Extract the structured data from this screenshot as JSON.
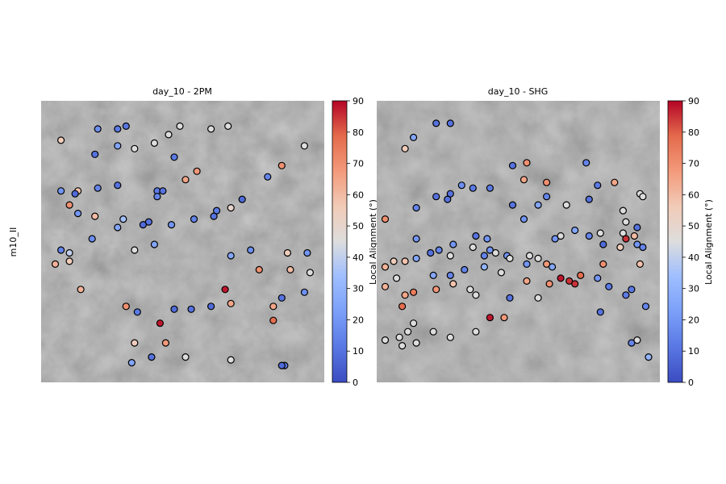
{
  "figure": {
    "row_label": "m10_II"
  },
  "chart_data": [
    {
      "type": "scatter",
      "title": "day_10 - 2PM",
      "colorbar": {
        "label": "Local Alignment (°)",
        "range": [
          0,
          90
        ],
        "ticks": [
          "0",
          "10",
          "20",
          "30",
          "40",
          "50",
          "60",
          "70",
          "80",
          "90"
        ],
        "colormap": "coolwarm"
      },
      "axes_visible": false,
      "points": [
        {
          "x": 0.2,
          "y": 0.9,
          "v": 18
        },
        {
          "x": 0.27,
          "y": 0.9,
          "v": 12
        },
        {
          "x": 0.3,
          "y": 0.91,
          "v": 11
        },
        {
          "x": 0.49,
          "y": 0.91,
          "v": 45
        },
        {
          "x": 0.6,
          "y": 0.9,
          "v": 45
        },
        {
          "x": 0.66,
          "y": 0.91,
          "v": 45
        },
        {
          "x": 0.07,
          "y": 0.86,
          "v": 55
        },
        {
          "x": 0.4,
          "y": 0.85,
          "v": 45
        },
        {
          "x": 0.45,
          "y": 0.88,
          "v": 45
        },
        {
          "x": 0.19,
          "y": 0.81,
          "v": 10
        },
        {
          "x": 0.27,
          "y": 0.84,
          "v": 25
        },
        {
          "x": 0.33,
          "y": 0.83,
          "v": 45
        },
        {
          "x": 0.47,
          "y": 0.8,
          "v": 12
        },
        {
          "x": 0.93,
          "y": 0.84,
          "v": 45
        },
        {
          "x": 0.85,
          "y": 0.77,
          "v": 70
        },
        {
          "x": 0.55,
          "y": 0.75,
          "v": 68
        },
        {
          "x": 0.51,
          "y": 0.72,
          "v": 65
        },
        {
          "x": 0.8,
          "y": 0.73,
          "v": 15
        },
        {
          "x": 0.07,
          "y": 0.68,
          "v": 20
        },
        {
          "x": 0.13,
          "y": 0.68,
          "v": 58
        },
        {
          "x": 0.12,
          "y": 0.67,
          "v": 8
        },
        {
          "x": 0.2,
          "y": 0.69,
          "v": 15
        },
        {
          "x": 0.27,
          "y": 0.7,
          "v": 10
        },
        {
          "x": 0.41,
          "y": 0.68,
          "v": 12
        },
        {
          "x": 0.43,
          "y": 0.68,
          "v": 10
        },
        {
          "x": 0.41,
          "y": 0.66,
          "v": 15
        },
        {
          "x": 0.71,
          "y": 0.65,
          "v": 8
        },
        {
          "x": 0.1,
          "y": 0.63,
          "v": 70
        },
        {
          "x": 0.13,
          "y": 0.6,
          "v": 20
        },
        {
          "x": 0.19,
          "y": 0.59,
          "v": 60
        },
        {
          "x": 0.29,
          "y": 0.58,
          "v": 35
        },
        {
          "x": 0.62,
          "y": 0.61,
          "v": 12
        },
        {
          "x": 0.67,
          "y": 0.62,
          "v": 50
        },
        {
          "x": 0.61,
          "y": 0.59,
          "v": 10
        },
        {
          "x": 0.54,
          "y": 0.58,
          "v": 15
        },
        {
          "x": 0.38,
          "y": 0.57,
          "v": 10
        },
        {
          "x": 0.36,
          "y": 0.56,
          "v": 8
        },
        {
          "x": 0.27,
          "y": 0.55,
          "v": 25
        },
        {
          "x": 0.46,
          "y": 0.56,
          "v": 20
        },
        {
          "x": 0.18,
          "y": 0.51,
          "v": 18
        },
        {
          "x": 0.4,
          "y": 0.49,
          "v": 25
        },
        {
          "x": 0.07,
          "y": 0.47,
          "v": 15
        },
        {
          "x": 0.1,
          "y": 0.46,
          "v": 40
        },
        {
          "x": 0.33,
          "y": 0.47,
          "v": 45
        },
        {
          "x": 0.74,
          "y": 0.47,
          "v": 18
        },
        {
          "x": 0.67,
          "y": 0.45,
          "v": 25
        },
        {
          "x": 0.87,
          "y": 0.46,
          "v": 55
        },
        {
          "x": 0.94,
          "y": 0.46,
          "v": 20
        },
        {
          "x": 0.1,
          "y": 0.43,
          "v": 55
        },
        {
          "x": 0.05,
          "y": 0.42,
          "v": 62
        },
        {
          "x": 0.77,
          "y": 0.4,
          "v": 70
        },
        {
          "x": 0.88,
          "y": 0.4,
          "v": 60
        },
        {
          "x": 0.95,
          "y": 0.39,
          "v": 45
        },
        {
          "x": 0.14,
          "y": 0.33,
          "v": 62
        },
        {
          "x": 0.65,
          "y": 0.33,
          "v": 88
        },
        {
          "x": 0.93,
          "y": 0.32,
          "v": 18
        },
        {
          "x": 0.85,
          "y": 0.3,
          "v": 10
        },
        {
          "x": 0.3,
          "y": 0.27,
          "v": 70
        },
        {
          "x": 0.34,
          "y": 0.25,
          "v": 12
        },
        {
          "x": 0.47,
          "y": 0.26,
          "v": 8
        },
        {
          "x": 0.53,
          "y": 0.26,
          "v": 10
        },
        {
          "x": 0.6,
          "y": 0.27,
          "v": 8
        },
        {
          "x": 0.67,
          "y": 0.28,
          "v": 65
        },
        {
          "x": 0.82,
          "y": 0.27,
          "v": 65
        },
        {
          "x": 0.42,
          "y": 0.21,
          "v": 88
        },
        {
          "x": 0.82,
          "y": 0.22,
          "v": 78
        },
        {
          "x": 0.33,
          "y": 0.14,
          "v": 55
        },
        {
          "x": 0.44,
          "y": 0.14,
          "v": 68
        },
        {
          "x": 0.51,
          "y": 0.09,
          "v": 45
        },
        {
          "x": 0.39,
          "y": 0.09,
          "v": 10
        },
        {
          "x": 0.32,
          "y": 0.07,
          "v": 25
        },
        {
          "x": 0.67,
          "y": 0.08,
          "v": 45
        },
        {
          "x": 0.86,
          "y": 0.06,
          "v": 12
        },
        {
          "x": 0.85,
          "y": 0.06,
          "v": 8
        }
      ]
    },
    {
      "type": "scatter",
      "title": "day_10 - SHG",
      "colorbar": {
        "label": "Local Alignment (°)",
        "range": [
          0,
          90
        ],
        "ticks": [
          "0",
          "10",
          "20",
          "30",
          "40",
          "50",
          "60",
          "70",
          "80",
          "90"
        ],
        "colormap": "coolwarm"
      },
      "axes_visible": false,
      "points": [
        {
          "x": 0.21,
          "y": 0.92,
          "v": 10
        },
        {
          "x": 0.26,
          "y": 0.92,
          "v": 10
        },
        {
          "x": 0.13,
          "y": 0.87,
          "v": 25
        },
        {
          "x": 0.1,
          "y": 0.83,
          "v": 55
        },
        {
          "x": 0.48,
          "y": 0.77,
          "v": 10
        },
        {
          "x": 0.53,
          "y": 0.78,
          "v": 70
        },
        {
          "x": 0.6,
          "y": 0.71,
          "v": 70
        },
        {
          "x": 0.52,
          "y": 0.72,
          "v": 65
        },
        {
          "x": 0.3,
          "y": 0.7,
          "v": 18
        },
        {
          "x": 0.34,
          "y": 0.69,
          "v": 12
        },
        {
          "x": 0.4,
          "y": 0.69,
          "v": 12
        },
        {
          "x": 0.26,
          "y": 0.67,
          "v": 10
        },
        {
          "x": 0.21,
          "y": 0.66,
          "v": 10
        },
        {
          "x": 0.25,
          "y": 0.65,
          "v": 10
        },
        {
          "x": 0.14,
          "y": 0.62,
          "v": 15
        },
        {
          "x": 0.48,
          "y": 0.63,
          "v": 10
        },
        {
          "x": 0.52,
          "y": 0.58,
          "v": 20
        },
        {
          "x": 0.57,
          "y": 0.63,
          "v": 25
        },
        {
          "x": 0.6,
          "y": 0.66,
          "v": 15
        },
        {
          "x": 0.67,
          "y": 0.63,
          "v": 45
        },
        {
          "x": 0.75,
          "y": 0.65,
          "v": 10
        },
        {
          "x": 0.78,
          "y": 0.7,
          "v": 12
        },
        {
          "x": 0.84,
          "y": 0.71,
          "v": 65
        },
        {
          "x": 0.74,
          "y": 0.78,
          "v": 15
        },
        {
          "x": 0.03,
          "y": 0.58,
          "v": 70
        },
        {
          "x": 0.35,
          "y": 0.52,
          "v": 10
        },
        {
          "x": 0.39,
          "y": 0.51,
          "v": 20
        },
        {
          "x": 0.65,
          "y": 0.52,
          "v": 45
        },
        {
          "x": 0.63,
          "y": 0.51,
          "v": 20
        },
        {
          "x": 0.7,
          "y": 0.54,
          "v": 25
        },
        {
          "x": 0.75,
          "y": 0.52,
          "v": 15
        },
        {
          "x": 0.79,
          "y": 0.53,
          "v": 45
        },
        {
          "x": 0.8,
          "y": 0.49,
          "v": 8
        },
        {
          "x": 0.87,
          "y": 0.61,
          "v": 45
        },
        {
          "x": 0.88,
          "y": 0.57,
          "v": 45
        },
        {
          "x": 0.93,
          "y": 0.67,
          "v": 45
        },
        {
          "x": 0.94,
          "y": 0.66,
          "v": 45
        },
        {
          "x": 0.92,
          "y": 0.55,
          "v": 10
        },
        {
          "x": 0.87,
          "y": 0.53,
          "v": 45
        },
        {
          "x": 0.91,
          "y": 0.52,
          "v": 60
        },
        {
          "x": 0.88,
          "y": 0.51,
          "v": 85
        },
        {
          "x": 0.92,
          "y": 0.49,
          "v": 20
        },
        {
          "x": 0.94,
          "y": 0.48,
          "v": 15
        },
        {
          "x": 0.86,
          "y": 0.48,
          "v": 55
        },
        {
          "x": 0.14,
          "y": 0.51,
          "v": 20
        },
        {
          "x": 0.22,
          "y": 0.47,
          "v": 15
        },
        {
          "x": 0.27,
          "y": 0.49,
          "v": 20
        },
        {
          "x": 0.34,
          "y": 0.48,
          "v": 45
        },
        {
          "x": 0.4,
          "y": 0.47,
          "v": 20
        },
        {
          "x": 0.19,
          "y": 0.46,
          "v": 10
        },
        {
          "x": 0.26,
          "y": 0.45,
          "v": 45
        },
        {
          "x": 0.42,
          "y": 0.46,
          "v": 45
        },
        {
          "x": 0.46,
          "y": 0.45,
          "v": 20
        },
        {
          "x": 0.54,
          "y": 0.45,
          "v": 45
        },
        {
          "x": 0.38,
          "y": 0.45,
          "v": 15
        },
        {
          "x": 0.57,
          "y": 0.44,
          "v": 45
        },
        {
          "x": 0.14,
          "y": 0.44,
          "v": 25
        },
        {
          "x": 0.06,
          "y": 0.43,
          "v": 55
        },
        {
          "x": 0.1,
          "y": 0.43,
          "v": 58
        },
        {
          "x": 0.47,
          "y": 0.44,
          "v": 45
        },
        {
          "x": 0.53,
          "y": 0.42,
          "v": 20
        },
        {
          "x": 0.6,
          "y": 0.42,
          "v": 68
        },
        {
          "x": 0.62,
          "y": 0.41,
          "v": 25
        },
        {
          "x": 0.8,
          "y": 0.42,
          "v": 70
        },
        {
          "x": 0.93,
          "y": 0.42,
          "v": 58
        },
        {
          "x": 0.72,
          "y": 0.38,
          "v": 78
        },
        {
          "x": 0.68,
          "y": 0.36,
          "v": 85
        },
        {
          "x": 0.65,
          "y": 0.37,
          "v": 88
        },
        {
          "x": 0.03,
          "y": 0.41,
          "v": 62
        },
        {
          "x": 0.07,
          "y": 0.37,
          "v": 45
        },
        {
          "x": 0.2,
          "y": 0.38,
          "v": 25
        },
        {
          "x": 0.26,
          "y": 0.38,
          "v": 15
        },
        {
          "x": 0.31,
          "y": 0.4,
          "v": 15
        },
        {
          "x": 0.38,
          "y": 0.41,
          "v": 30
        },
        {
          "x": 0.44,
          "y": 0.39,
          "v": 45
        },
        {
          "x": 0.53,
          "y": 0.36,
          "v": 65
        },
        {
          "x": 0.61,
          "y": 0.35,
          "v": 70
        },
        {
          "x": 0.7,
          "y": 0.35,
          "v": 85
        },
        {
          "x": 0.78,
          "y": 0.37,
          "v": 20
        },
        {
          "x": 0.82,
          "y": 0.34,
          "v": 12
        },
        {
          "x": 0.9,
          "y": 0.33,
          "v": 12
        },
        {
          "x": 0.03,
          "y": 0.34,
          "v": 62
        },
        {
          "x": 0.1,
          "y": 0.31,
          "v": 65
        },
        {
          "x": 0.13,
          "y": 0.32,
          "v": 75
        },
        {
          "x": 0.21,
          "y": 0.33,
          "v": 68
        },
        {
          "x": 0.27,
          "y": 0.35,
          "v": 58
        },
        {
          "x": 0.09,
          "y": 0.27,
          "v": 78
        },
        {
          "x": 0.33,
          "y": 0.33,
          "v": 45
        },
        {
          "x": 0.35,
          "y": 0.31,
          "v": 45
        },
        {
          "x": 0.47,
          "y": 0.3,
          "v": 10
        },
        {
          "x": 0.57,
          "y": 0.3,
          "v": 45
        },
        {
          "x": 0.88,
          "y": 0.31,
          "v": 12
        },
        {
          "x": 0.95,
          "y": 0.27,
          "v": 15
        },
        {
          "x": 0.79,
          "y": 0.25,
          "v": 10
        },
        {
          "x": 0.4,
          "y": 0.23,
          "v": 88
        },
        {
          "x": 0.45,
          "y": 0.23,
          "v": 68
        },
        {
          "x": 0.13,
          "y": 0.21,
          "v": 45
        },
        {
          "x": 0.08,
          "y": 0.16,
          "v": 45
        },
        {
          "x": 0.11,
          "y": 0.18,
          "v": 45
        },
        {
          "x": 0.2,
          "y": 0.18,
          "v": 45
        },
        {
          "x": 0.26,
          "y": 0.16,
          "v": 45
        },
        {
          "x": 0.35,
          "y": 0.18,
          "v": 45
        },
        {
          "x": 0.03,
          "y": 0.15,
          "v": 45
        },
        {
          "x": 0.09,
          "y": 0.13,
          "v": 45
        },
        {
          "x": 0.14,
          "y": 0.14,
          "v": 45
        },
        {
          "x": 0.92,
          "y": 0.15,
          "v": 45
        },
        {
          "x": 0.9,
          "y": 0.14,
          "v": 15
        },
        {
          "x": 0.96,
          "y": 0.09,
          "v": 30
        }
      ]
    }
  ]
}
